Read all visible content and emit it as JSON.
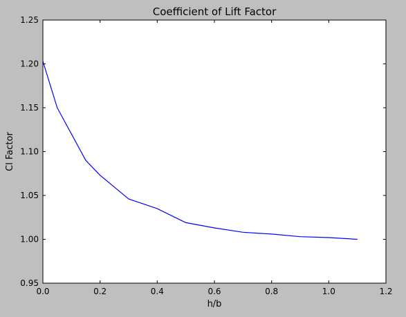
{
  "chart_data": {
    "type": "line",
    "title": "Coefficient of Lift Factor",
    "xlabel": "h/b",
    "ylabel": "Cl Factor",
    "xlim": [
      0.0,
      1.2
    ],
    "ylim": [
      0.95,
      1.25
    ],
    "xticks": [
      "0.0",
      "0.2",
      "0.4",
      "0.6",
      "0.8",
      "1.0",
      "1.2"
    ],
    "yticks": [
      "0.95",
      "1.00",
      "1.05",
      "1.10",
      "1.15",
      "1.20",
      "1.25"
    ],
    "grid": false,
    "series": [
      {
        "color": "#0000ff",
        "x": [
          0.0,
          0.05,
          0.15,
          0.2,
          0.3,
          0.4,
          0.5,
          0.6,
          0.7,
          0.8,
          0.9,
          1.0,
          1.1
        ],
        "y": [
          1.203,
          1.15,
          1.09,
          1.073,
          1.046,
          1.035,
          1.019,
          1.013,
          1.008,
          1.006,
          1.003,
          1.002,
          1.0
        ]
      }
    ]
  }
}
